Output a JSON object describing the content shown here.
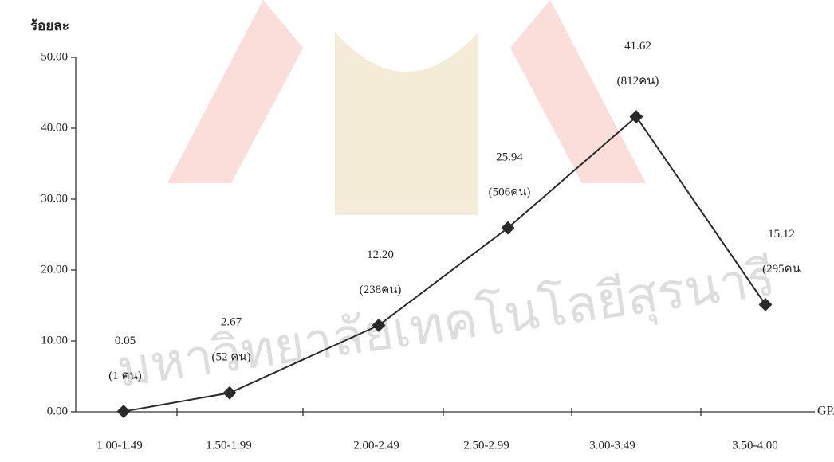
{
  "chart_data": {
    "type": "line",
    "y_axis_label": "ร้อยละ",
    "x_axis_label": "GPA",
    "categories": [
      "1.00-1.49",
      "1.50-1.99",
      "2.00-2.49",
      "2.50-2.99",
      "3.00-3.49",
      "3.50-4.00"
    ],
    "series": [
      {
        "name": null,
        "color": "#2a2a2a",
        "values": [
          0.05,
          2.67,
          12.2,
          25.94,
          41.62,
          15.12
        ],
        "value_labels": [
          "0.05",
          "2.67",
          "12.20",
          "25.94",
          "41.62",
          "15.12"
        ],
        "annotations": [
          "(1 คน)",
          "(52 คน)",
          "(238คน)",
          "(506คน)",
          "(812คน)",
          "(295คน"
        ]
      }
    ],
    "ylim": [
      0,
      50
    ],
    "yticks": [
      {
        "value": 0,
        "label": "0.00"
      },
      {
        "value": 10,
        "label": "10.00"
      },
      {
        "value": 20,
        "label": "20.00"
      },
      {
        "value": 30,
        "label": "30.00"
      },
      {
        "value": 40,
        "label": "40.00"
      },
      {
        "value": 50,
        "label": "50.00"
      }
    ],
    "watermark": "มหาวิทยาลัยเทคโนโลยีสุรนารี"
  }
}
